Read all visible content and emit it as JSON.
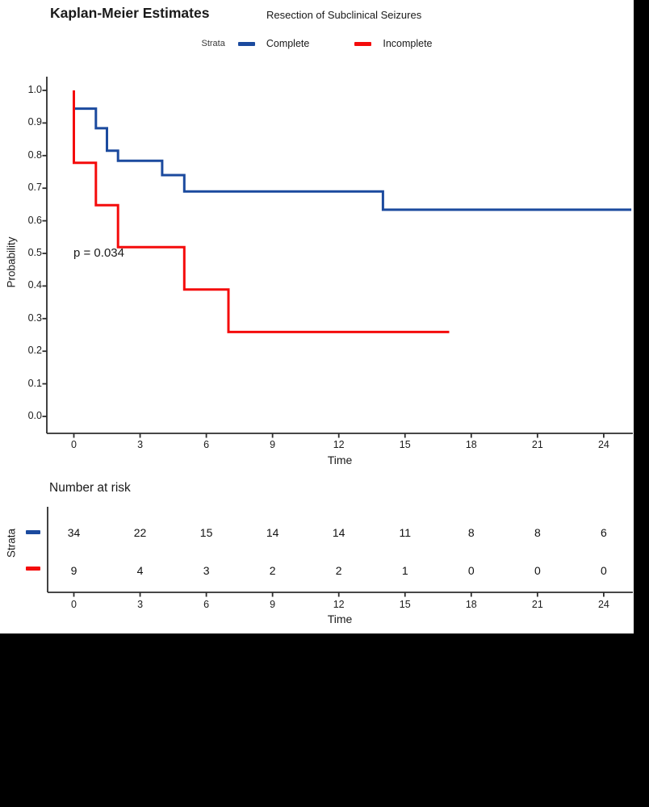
{
  "title": "Kaplan-Meier Estimates",
  "subtitle": "Resection of Subclinical Seizures",
  "legend": {
    "label": "Strata",
    "items": [
      {
        "name": "Complete",
        "color": "#1b4a9e"
      },
      {
        "name": "Incomplete",
        "color": "#f40b0b"
      }
    ]
  },
  "chart_data": {
    "type": "line",
    "subtype": "kaplan-meier-step",
    "title": "Kaplan-Meier Estimates",
    "subtitle": "Resection of Subclinical Seizures",
    "xlabel": "Time",
    "ylabel": "Probability",
    "xlim": [
      0,
      25.3
    ],
    "ylim": [
      0.0,
      1.0
    ],
    "x_ticks": [
      0,
      3,
      6,
      9,
      12,
      15,
      18,
      21,
      24
    ],
    "y_ticks": [
      1.0,
      0.9,
      0.8,
      0.7,
      0.6,
      0.5,
      0.4,
      0.3,
      0.2,
      0.1,
      0.0
    ],
    "y_tick_labels": [
      "1.0",
      "0.9",
      "0.8",
      "0.7",
      "0.6",
      "0.5",
      "0.4",
      "0.3",
      "0.2",
      "0.1",
      "0.0"
    ],
    "grid": "off",
    "legend_position": "top",
    "p_value": "p = 0.034",
    "series": [
      {
        "name": "Complete",
        "color": "#1b4a9e",
        "steps": [
          [
            0,
            0.944
          ],
          [
            1,
            0.944
          ],
          [
            1,
            0.884
          ],
          [
            1.5,
            0.884
          ],
          [
            1.5,
            0.815
          ],
          [
            2,
            0.815
          ],
          [
            2,
            0.784
          ],
          [
            4,
            0.784
          ],
          [
            4,
            0.74
          ],
          [
            5,
            0.74
          ],
          [
            5,
            0.69
          ],
          [
            14,
            0.69
          ],
          [
            14,
            0.634
          ],
          [
            25.25,
            0.634
          ]
        ]
      },
      {
        "name": "Incomplete",
        "color": "#f40b0b",
        "steps": [
          [
            0,
            1.0
          ],
          [
            0,
            0.778
          ],
          [
            1,
            0.778
          ],
          [
            1,
            0.648
          ],
          [
            2,
            0.648
          ],
          [
            2,
            0.519
          ],
          [
            5,
            0.519
          ],
          [
            5,
            0.389
          ],
          [
            7,
            0.389
          ],
          [
            7,
            0.259
          ],
          [
            17,
            0.259
          ]
        ]
      }
    ]
  },
  "risk_table": {
    "title": "Number at risk",
    "ylabel": "Strata",
    "xlabel": "Time",
    "x_ticks": [
      0,
      3,
      6,
      9,
      12,
      15,
      18,
      21,
      24
    ],
    "rows": [
      {
        "name": "Complete",
        "color": "#1b4a9e",
        "values": [
          34,
          22,
          15,
          14,
          14,
          11,
          8,
          8,
          6
        ]
      },
      {
        "name": "Incomplete",
        "color": "#f40b0b",
        "values": [
          9,
          4,
          3,
          2,
          2,
          1,
          0,
          0,
          0
        ]
      }
    ]
  }
}
